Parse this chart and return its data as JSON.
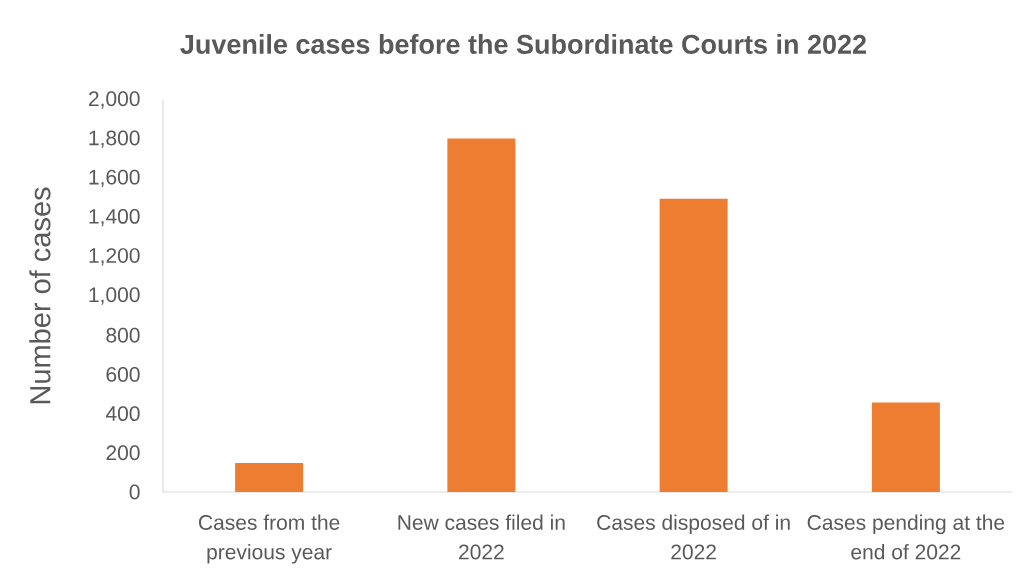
{
  "chart_data": {
    "type": "bar",
    "title": "Juvenile cases before the Subordinate Courts in 2022",
    "ylabel": "Number of cases",
    "categories": [
      "Cases from the previous year",
      "New cases filed in 2022",
      "Cases disposed of in 2022",
      "Cases pending at the end of 2022"
    ],
    "values": [
      148,
      1804,
      1496,
      457
    ],
    "color": "#ed7d31",
    "ylim": [
      0,
      2000
    ],
    "yticks": [
      0,
      200,
      400,
      600,
      800,
      {
        "value": 1000,
        "label": "1,000"
      },
      {
        "value": 1200,
        "label": "1,200"
      },
      {
        "value": 1400,
        "label": "1,400"
      },
      {
        "value": 1600,
        "label": "1,600"
      },
      {
        "value": 1800,
        "label": "1,800"
      },
      {
        "value": 2000,
        "label": "2,000"
      }
    ]
  }
}
